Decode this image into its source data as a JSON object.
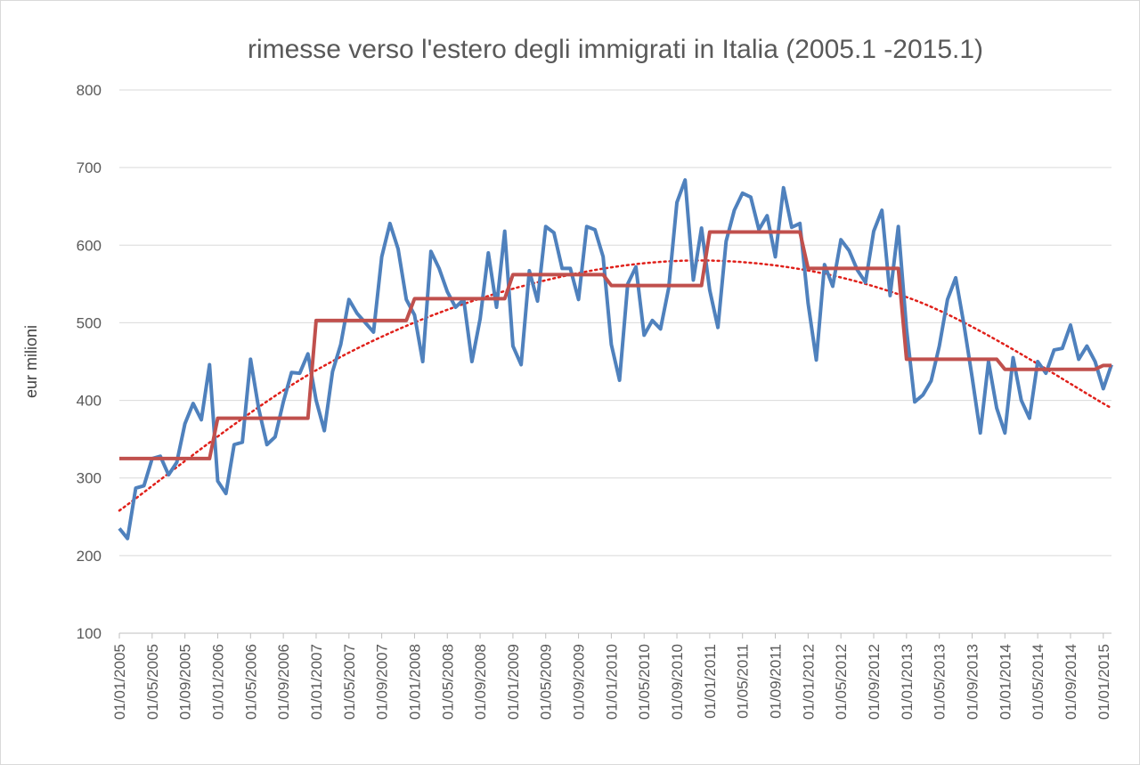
{
  "chart_data": {
    "type": "line",
    "title": "rimesse verso l'estero degli immigrati in Italia (2005.1 -2015.1)",
    "ylabel": "eur milioni",
    "xlabel": "",
    "ylim": [
      100,
      800
    ],
    "yticks": [
      100,
      200,
      300,
      400,
      500,
      600,
      700,
      800
    ],
    "grid": "horizontal",
    "legend": "none",
    "x_tick_labels": [
      "01/01/2005",
      "01/05/2005",
      "01/09/2005",
      "01/01/2006",
      "01/05/2006",
      "01/09/2006",
      "01/01/2007",
      "01/05/2007",
      "01/09/2007",
      "01/01/2008",
      "01/05/2008",
      "01/09/2008",
      "01/01/2009",
      "01/05/2009",
      "01/09/2009",
      "01/01/2010",
      "01/05/2010",
      "01/09/2010",
      "01/01/2011",
      "01/05/2011",
      "01/09/2011",
      "01/01/2012",
      "01/05/2012",
      "01/09/2012",
      "01/01/2013",
      "01/05/2013",
      "01/09/2013",
      "01/01/2014",
      "01/05/2014",
      "01/09/2014",
      "01/01/2015"
    ],
    "x_start": "2005-01",
    "x_end": "2015-05",
    "series": [
      {
        "kind": "monthly",
        "color": "#4f81bd",
        "style": "solid",
        "values": [
          235,
          222,
          287,
          290,
          325,
          328,
          304,
          320,
          370,
          396,
          375,
          446,
          296,
          280,
          343,
          346,
          453,
          389,
          343,
          353,
          398,
          436,
          435,
          460,
          400,
          361,
          437,
          472,
          530,
          512,
          500,
          488,
          585,
          628,
          595,
          530,
          510,
          450,
          592,
          570,
          540,
          520,
          530,
          450,
          505,
          590,
          520,
          618,
          470,
          446,
          567,
          528,
          624,
          616,
          570,
          570,
          530,
          624,
          620,
          585,
          472,
          426,
          550,
          572,
          484,
          503,
          492,
          545,
          655,
          684,
          555,
          622,
          542,
          494,
          605,
          645,
          667,
          662,
          620,
          638,
          585,
          674,
          623,
          628,
          525,
          452,
          575,
          547,
          607,
          593,
          568,
          552,
          618,
          645,
          535,
          624,
          492,
          398,
          407,
          425,
          470,
          530,
          558,
          498,
          430,
          358,
          450,
          390,
          358,
          455,
          400,
          377,
          450,
          435,
          465,
          467,
          497,
          453,
          470,
          450,
          415,
          446
        ]
      },
      {
        "kind": "annual_mean_step",
        "color": "#c0504d",
        "style": "solid",
        "values": [
          325,
          377,
          503,
          531,
          562,
          548,
          617,
          570,
          453,
          440,
          445
        ]
      },
      {
        "kind": "polynomial_trend",
        "color": "#e0201a",
        "style": "dotted",
        "values": [
          258,
          440,
          545,
          580,
          530,
          390
        ]
      }
    ]
  }
}
